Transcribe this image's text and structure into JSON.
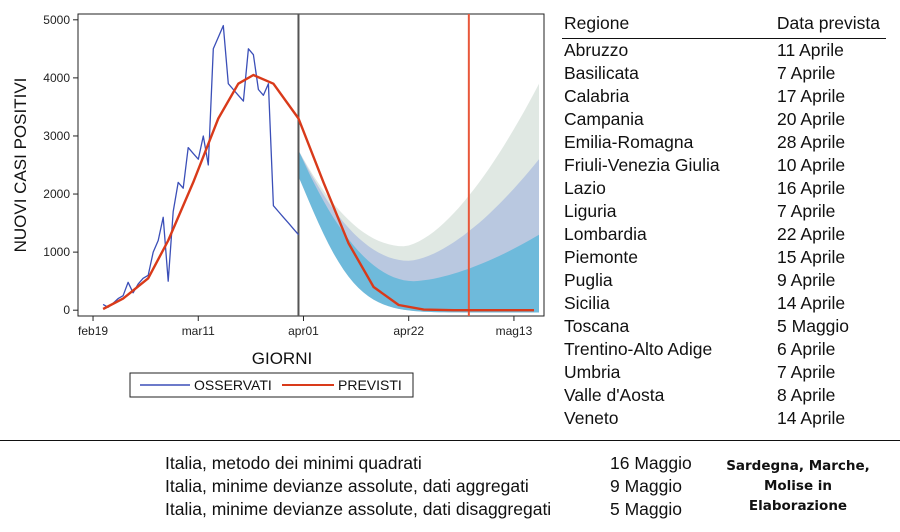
{
  "chart_data": {
    "type": "line",
    "xlabel": "GIORNI",
    "ylabel": "NUOVI CASI POSITIVI",
    "x_ticks": [
      "feb19",
      "mar11",
      "apr01",
      "apr22",
      "mag13"
    ],
    "y_ticks": [
      "0",
      "1000",
      "2000",
      "3000",
      "4000",
      "5000"
    ],
    "xlim": [
      "2020-02-16",
      "2020-05-19"
    ],
    "ylim": [
      -100,
      5100
    ],
    "observed_end": "2020-03-31",
    "vertical_line_red": "2020-05-04",
    "legend": {
      "position": "bottom",
      "entries": [
        "OSSERVATI",
        "PREVISTI"
      ]
    },
    "colors": {
      "observed": "#3b4fb8",
      "predicted": "#d93a1a",
      "band_inner": "#4fb3d9",
      "band_mid": "#9fb3dd",
      "band_outer": "#c6d6cc"
    },
    "series": [
      {
        "name": "OSSERVATI",
        "x": [
          "2020-02-21",
          "2020-02-22",
          "2020-02-23",
          "2020-02-24",
          "2020-02-25",
          "2020-02-26",
          "2020-02-27",
          "2020-02-28",
          "2020-02-29",
          "2020-03-01",
          "2020-03-02",
          "2020-03-03",
          "2020-03-04",
          "2020-03-05",
          "2020-03-06",
          "2020-03-07",
          "2020-03-08",
          "2020-03-09",
          "2020-03-10",
          "2020-03-11",
          "2020-03-12",
          "2020-03-13",
          "2020-03-14",
          "2020-03-15",
          "2020-03-16",
          "2020-03-17",
          "2020-03-18",
          "2020-03-19",
          "2020-03-20",
          "2020-03-21",
          "2020-03-22",
          "2020-03-23",
          "2020-03-24",
          "2020-03-25",
          "2020-03-26",
          "2020-03-27",
          "2020-03-28",
          "2020-03-29",
          "2020-03-30",
          "2020-03-31"
        ],
        "values": [
          100,
          50,
          120,
          200,
          250,
          480,
          300,
          450,
          550,
          600,
          1000,
          1200,
          1600,
          500,
          1700,
          2200,
          2100,
          2800,
          2700,
          2600,
          3000,
          2500,
          4500,
          4700,
          4900,
          3900,
          3800,
          3700,
          3600,
          4500,
          4400,
          3800,
          3700,
          3900,
          1800,
          1700,
          1600,
          1500,
          1400,
          1300
        ]
      },
      {
        "name": "PREVISTI",
        "x": [
          "2020-02-21",
          "2020-02-25",
          "2020-03-01",
          "2020-03-05",
          "2020-03-10",
          "2020-03-15",
          "2020-03-19",
          "2020-03-22",
          "2020-03-26",
          "2020-03-31",
          "2020-04-05",
          "2020-04-10",
          "2020-04-15",
          "2020-04-20",
          "2020-04-25",
          "2020-05-01",
          "2020-05-08",
          "2020-05-17"
        ],
        "values": [
          20,
          200,
          550,
          1200,
          2200,
          3300,
          3900,
          4050,
          3900,
          3300,
          2200,
          1150,
          400,
          90,
          10,
          0,
          0,
          0
        ]
      }
    ]
  },
  "table": {
    "header_region": "Regione",
    "header_date": "Data prevista",
    "rows": [
      {
        "region": "Abruzzo",
        "date": "11 Aprile"
      },
      {
        "region": "Basilicata",
        "date": "7 Aprile"
      },
      {
        "region": "Calabria",
        "date": "17 Aprile"
      },
      {
        "region": "Campania",
        "date": "20 Aprile"
      },
      {
        "region": "Emilia-Romagna",
        "date": "28 Aprile"
      },
      {
        "region": "Friuli-Venezia Giulia",
        "date": "10 Aprile"
      },
      {
        "region": "Lazio",
        "date": "16 Aprile"
      },
      {
        "region": "Liguria",
        "date": "7 Aprile"
      },
      {
        "region": "Lombardia",
        "date": "22 Aprile"
      },
      {
        "region": "Piemonte",
        "date": "15 Aprile"
      },
      {
        "region": "Puglia",
        "date": "9 Aprile"
      },
      {
        "region": "Sicilia",
        "date": "14 Aprile"
      },
      {
        "region": "Toscana",
        "date": "5 Maggio"
      },
      {
        "region": "Trentino-Alto Adige",
        "date": "6 Aprile"
      },
      {
        "region": "Umbria",
        "date": "7 Aprile"
      },
      {
        "region": "Valle d'Aosta",
        "date": "8 Aprile"
      },
      {
        "region": "Veneto",
        "date": "14 Aprile"
      }
    ]
  },
  "italy": [
    {
      "method": "Italia, metodo dei minimi quadrati",
      "date": "16 Maggio"
    },
    {
      "method": "Italia, minime devianze assolute, dati aggregati",
      "date": "9 Maggio"
    },
    {
      "method": "Italia, minime devianze assolute, dati disaggregati",
      "date": "5 Maggio"
    }
  ],
  "note": {
    "line1": "Sardegna, Marche,",
    "line2": "Molise in",
    "line3": "Elaborazione"
  }
}
